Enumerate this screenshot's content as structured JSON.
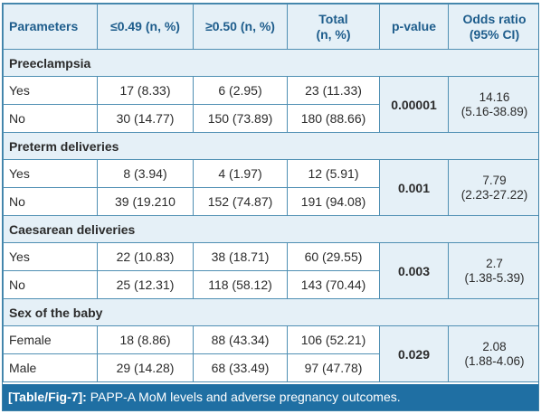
{
  "table": {
    "headers": {
      "parameters": "Parameters",
      "low": "≤0.49 (n, %)",
      "high": "≥0.50 (n, %)",
      "total_line1": "Total",
      "total_line2": "(n, %)",
      "pvalue": "p-value",
      "odds_line1": "Odds ratio",
      "odds_line2": "(95% CI)"
    },
    "groups": [
      {
        "title": "Preeclampsia",
        "rows": [
          {
            "label": "Yes",
            "low": "17 (8.33)",
            "high": "6 (2.95)",
            "total": "23 (11.33)"
          },
          {
            "label": "No",
            "low": "30 (14.77)",
            "high": "150 (73.89)",
            "total": "180 (88.66)"
          }
        ],
        "pvalue": "0.00001",
        "odds": "14.16",
        "ci": "(5.16-38.89)"
      },
      {
        "title": "Preterm deliveries",
        "rows": [
          {
            "label": "Yes",
            "low": "8 (3.94)",
            "high": "4 (1.97)",
            "total": "12 (5.91)"
          },
          {
            "label": "No",
            "low": "39 (19.210",
            "high": "152 (74.87)",
            "total": "191 (94.08)"
          }
        ],
        "pvalue": "0.001",
        "odds": "7.79",
        "ci": "(2.23-27.22)"
      },
      {
        "title": "Caesarean deliveries",
        "rows": [
          {
            "label": "Yes",
            "low": "22 (10.83)",
            "high": "38 (18.71)",
            "total": "60 (29.55)"
          },
          {
            "label": "No",
            "low": "25 (12.31)",
            "high": "118 (58.12)",
            "total": "143 (70.44)"
          }
        ],
        "pvalue": "0.003",
        "odds": "2.7",
        "ci": "(1.38-5.39)"
      },
      {
        "title": "Sex of the baby",
        "rows": [
          {
            "label": "Female",
            "low": "18 (8.86)",
            "high": "88 (43.34)",
            "total": "106 (52.21)"
          },
          {
            "label": "Male",
            "low": "29 (14.28)",
            "high": "68 (33.49)",
            "total": "97 (47.78)"
          }
        ],
        "pvalue": "0.029",
        "odds": "2.08",
        "ci": "(1.88-4.06)"
      }
    ]
  },
  "caption": {
    "tag": "[Table/Fig-7]:",
    "text": "PAPP-A MoM levels and adverse pregnancy outcomes."
  },
  "colors": {
    "header_bg": "#e5f0f7",
    "header_text": "#1e5d8c",
    "border": "#4f8fb3",
    "caption_bg": "#1f6fa3"
  }
}
